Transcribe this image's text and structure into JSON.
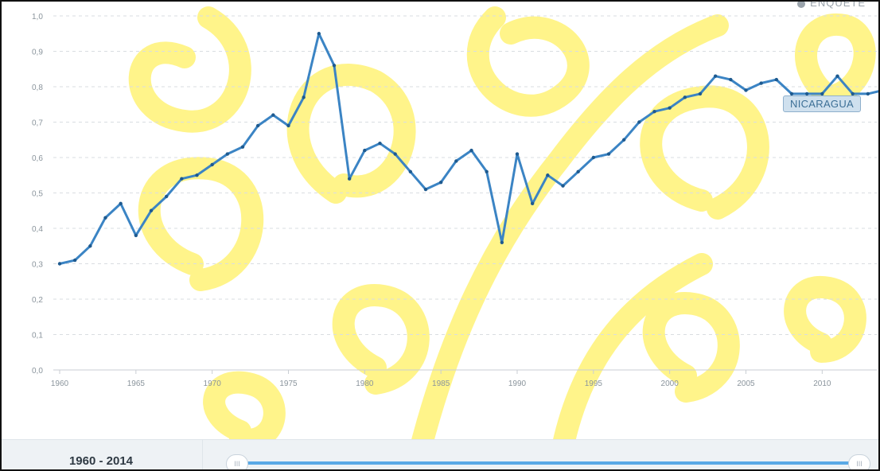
{
  "chart_data": {
    "type": "line",
    "title": "",
    "xlabel": "",
    "ylabel": "",
    "xlim": [
      1960,
      2014
    ],
    "ylim": [
      0,
      1.0
    ],
    "y_ticks": [
      "0,0",
      "0,1",
      "0,2",
      "0,3",
      "0,4",
      "0,5",
      "0,6",
      "0,7",
      "0,8",
      "0,9",
      "1,0"
    ],
    "x_ticks": [
      "1960",
      "1965",
      "1970",
      "1975",
      "1980",
      "1985",
      "1990",
      "1995",
      "2000",
      "2005",
      "2010"
    ],
    "grid": "horizontal dashed",
    "series": [
      {
        "name": "NICARAGUA",
        "color": "#3b84c4",
        "x": [
          1960,
          1961,
          1962,
          1963,
          1964,
          1965,
          1966,
          1967,
          1968,
          1969,
          1970,
          1971,
          1972,
          1973,
          1974,
          1975,
          1976,
          1977,
          1978,
          1979,
          1980,
          1981,
          1982,
          1983,
          1984,
          1985,
          1986,
          1987,
          1988,
          1989,
          1990,
          1991,
          1992,
          1993,
          1994,
          1995,
          1996,
          1997,
          1998,
          1999,
          2000,
          2001,
          2002,
          2003,
          2004,
          2005,
          2006,
          2007,
          2008,
          2009,
          2010,
          2011,
          2012,
          2013,
          2014
        ],
        "y": [
          0.3,
          0.31,
          0.35,
          0.43,
          0.47,
          0.38,
          0.45,
          0.49,
          0.54,
          0.55,
          0.58,
          0.61,
          0.63,
          0.69,
          0.72,
          0.69,
          0.77,
          0.95,
          0.86,
          0.54,
          0.62,
          0.64,
          0.61,
          0.56,
          0.51,
          0.53,
          0.59,
          0.62,
          0.56,
          0.36,
          0.61,
          0.47,
          0.55,
          0.52,
          0.56,
          0.6,
          0.61,
          0.65,
          0.7,
          0.73,
          0.74,
          0.77,
          0.78,
          0.83,
          0.82,
          0.79,
          0.81,
          0.82,
          0.78,
          0.78,
          0.78,
          0.83,
          0.78,
          0.78,
          0.79
        ]
      }
    ]
  },
  "legend_hint": "ENQUETE",
  "tooltip": {
    "label": "NICARAGUA"
  },
  "range": {
    "label": "1960 - 2014",
    "start": 1960,
    "end": 2014
  },
  "slider": {
    "handle_glyph": "III"
  },
  "colors": {
    "line": "#3b84c4",
    "watermark": "#fff48a",
    "slider": "#5aa9e6",
    "grid": "#d9dde1"
  }
}
